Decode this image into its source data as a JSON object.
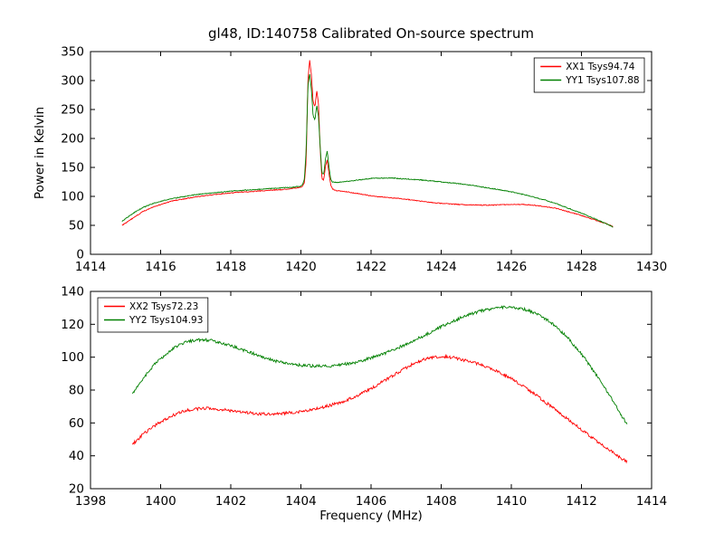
{
  "colors": {
    "xx_line": "#ff0000",
    "yy_line": "#008000",
    "axis": "#000000",
    "background": "#ffffff"
  },
  "chart_data": [
    {
      "type": "line",
      "title": "gl48, ID:140758 Calibrated On-source spectrum",
      "xlabel": "",
      "ylabel": "Power in Kelvin",
      "xlim": [
        1414,
        1430
      ],
      "ylim": [
        0,
        350
      ],
      "xticks": [
        1414,
        1416,
        1418,
        1420,
        1422,
        1424,
        1426,
        1428,
        1430
      ],
      "yticks": [
        0,
        50,
        100,
        150,
        200,
        250,
        300,
        350
      ],
      "grid": false,
      "legend_position": "top-right",
      "series": [
        {
          "name": "XX1 Tsys94.74",
          "color": "#ff0000",
          "points": [
            [
              1414.9,
              50
            ],
            [
              1415.1,
              58
            ],
            [
              1415.3,
              66
            ],
            [
              1415.5,
              74
            ],
            [
              1415.8,
              82
            ],
            [
              1416.1,
              88
            ],
            [
              1416.4,
              93
            ],
            [
              1416.7,
              96
            ],
            [
              1417.0,
              99
            ],
            [
              1417.5,
              103
            ],
            [
              1418.0,
              106
            ],
            [
              1418.5,
              108
            ],
            [
              1419.0,
              110
            ],
            [
              1419.5,
              112
            ],
            [
              1419.8,
              114
            ],
            [
              1420.0,
              116
            ],
            [
              1420.05,
              118
            ],
            [
              1420.1,
              124
            ],
            [
              1420.15,
              160
            ],
            [
              1420.2,
              300
            ],
            [
              1420.25,
              335
            ],
            [
              1420.3,
              310
            ],
            [
              1420.35,
              262
            ],
            [
              1420.4,
              255
            ],
            [
              1420.45,
              283
            ],
            [
              1420.5,
              260
            ],
            [
              1420.55,
              180
            ],
            [
              1420.6,
              130
            ],
            [
              1420.65,
              128
            ],
            [
              1420.7,
              152
            ],
            [
              1420.75,
              163
            ],
            [
              1420.8,
              140
            ],
            [
              1420.85,
              120
            ],
            [
              1420.9,
              113
            ],
            [
              1421.0,
              110
            ],
            [
              1421.3,
              108
            ],
            [
              1421.6,
              105
            ],
            [
              1422.0,
              101
            ],
            [
              1422.5,
              98
            ],
            [
              1423.0,
              95
            ],
            [
              1423.5,
              91
            ],
            [
              1424.0,
              88
            ],
            [
              1424.5,
              86
            ],
            [
              1425.0,
              85
            ],
            [
              1425.5,
              85
            ],
            [
              1426.0,
              86
            ],
            [
              1426.3,
              86
            ],
            [
              1426.6,
              85
            ],
            [
              1427.0,
              82
            ],
            [
              1427.3,
              79
            ],
            [
              1427.6,
              74
            ],
            [
              1428.0,
              67
            ],
            [
              1428.4,
              59
            ],
            [
              1428.7,
              53
            ],
            [
              1428.9,
              48
            ]
          ]
        },
        {
          "name": "YY1 Tsys107.88",
          "color": "#008000",
          "points": [
            [
              1414.9,
              57
            ],
            [
              1415.1,
              66
            ],
            [
              1415.3,
              74
            ],
            [
              1415.5,
              81
            ],
            [
              1415.8,
              88
            ],
            [
              1416.1,
              93
            ],
            [
              1416.4,
              97
            ],
            [
              1416.7,
              100
            ],
            [
              1417.0,
              103
            ],
            [
              1417.5,
              106
            ],
            [
              1418.0,
              109
            ],
            [
              1418.5,
              111
            ],
            [
              1419.0,
              113
            ],
            [
              1419.5,
              115
            ],
            [
              1419.8,
              116
            ],
            [
              1420.0,
              118
            ],
            [
              1420.05,
              121
            ],
            [
              1420.1,
              130
            ],
            [
              1420.15,
              180
            ],
            [
              1420.2,
              290
            ],
            [
              1420.25,
              312
            ],
            [
              1420.3,
              285
            ],
            [
              1420.35,
              238
            ],
            [
              1420.4,
              232
            ],
            [
              1420.45,
              258
            ],
            [
              1420.5,
              238
            ],
            [
              1420.55,
              185
            ],
            [
              1420.6,
              140
            ],
            [
              1420.65,
              138
            ],
            [
              1420.7,
              165
            ],
            [
              1420.75,
              178
            ],
            [
              1420.8,
              152
            ],
            [
              1420.85,
              130
            ],
            [
              1420.9,
              125
            ],
            [
              1421.0,
              124
            ],
            [
              1421.3,
              126
            ],
            [
              1421.6,
              128
            ],
            [
              1422.0,
              131
            ],
            [
              1422.5,
              132
            ],
            [
              1423.0,
              130
            ],
            [
              1423.5,
              128
            ],
            [
              1424.0,
              125
            ],
            [
              1424.5,
              122
            ],
            [
              1425.0,
              118
            ],
            [
              1425.5,
              113
            ],
            [
              1426.0,
              108
            ],
            [
              1426.5,
              101
            ],
            [
              1427.0,
              93
            ],
            [
              1427.3,
              87
            ],
            [
              1427.6,
              80
            ],
            [
              1428.0,
              71
            ],
            [
              1428.4,
              61
            ],
            [
              1428.7,
              53
            ],
            [
              1428.9,
              47
            ]
          ]
        }
      ]
    },
    {
      "type": "line",
      "title": "",
      "xlabel": "Frequency (MHz)",
      "ylabel": "",
      "xlim": [
        1398,
        1414
      ],
      "ylim": [
        20,
        140
      ],
      "xticks": [
        1398,
        1400,
        1402,
        1404,
        1406,
        1408,
        1410,
        1412,
        1414
      ],
      "yticks": [
        20,
        40,
        60,
        80,
        100,
        120,
        140
      ],
      "grid": false,
      "legend_position": "top-left",
      "series": [
        {
          "name": "XX2 Tsys72.23",
          "color": "#ff0000",
          "points": [
            [
              1399.2,
              47
            ],
            [
              1399.5,
              53
            ],
            [
              1399.8,
              58
            ],
            [
              1400.1,
              62
            ],
            [
              1400.4,
              65
            ],
            [
              1400.7,
              67.5
            ],
            [
              1401.0,
              68.5
            ],
            [
              1401.3,
              69
            ],
            [
              1401.6,
              68.5
            ],
            [
              1402.0,
              67.5
            ],
            [
              1402.4,
              66.5
            ],
            [
              1402.8,
              65.5
            ],
            [
              1403.2,
              65.5
            ],
            [
              1403.6,
              66
            ],
            [
              1404.0,
              67
            ],
            [
              1404.4,
              68.5
            ],
            [
              1404.8,
              70.5
            ],
            [
              1405.2,
              73
            ],
            [
              1405.6,
              76.5
            ],
            [
              1406.0,
              81
            ],
            [
              1406.4,
              86
            ],
            [
              1406.8,
              91
            ],
            [
              1407.2,
              96
            ],
            [
              1407.6,
              99.5
            ],
            [
              1408.0,
              100.5
            ],
            [
              1408.4,
              99.5
            ],
            [
              1408.8,
              97.5
            ],
            [
              1409.2,
              95
            ],
            [
              1409.6,
              91.5
            ],
            [
              1410.0,
              87
            ],
            [
              1410.4,
              81.5
            ],
            [
              1410.8,
              75.5
            ],
            [
              1411.2,
              69
            ],
            [
              1411.6,
              62.5
            ],
            [
              1412.0,
              56
            ],
            [
              1412.4,
              49.5
            ],
            [
              1412.8,
              43.5
            ],
            [
              1413.1,
              39
            ],
            [
              1413.3,
              36.5
            ]
          ]
        },
        {
          "name": "YY2 Tsys104.93",
          "color": "#008000",
          "points": [
            [
              1399.2,
              78
            ],
            [
              1399.5,
              87
            ],
            [
              1399.8,
              95
            ],
            [
              1400.1,
              101
            ],
            [
              1400.4,
              106
            ],
            [
              1400.7,
              109
            ],
            [
              1401.0,
              110.5
            ],
            [
              1401.3,
              110.5
            ],
            [
              1401.6,
              109.5
            ],
            [
              1402.0,
              107
            ],
            [
              1402.4,
              104
            ],
            [
              1402.8,
              101
            ],
            [
              1403.2,
              98
            ],
            [
              1403.6,
              96
            ],
            [
              1404.0,
              95
            ],
            [
              1404.4,
              94.5
            ],
            [
              1404.8,
              94.5
            ],
            [
              1405.2,
              95.5
            ],
            [
              1405.6,
              97
            ],
            [
              1406.0,
              99.5
            ],
            [
              1406.4,
              102.5
            ],
            [
              1406.8,
              106
            ],
            [
              1407.2,
              110
            ],
            [
              1407.6,
              114
            ],
            [
              1408.0,
              118.5
            ],
            [
              1408.4,
              122.5
            ],
            [
              1408.8,
              126
            ],
            [
              1409.2,
              128.5
            ],
            [
              1409.6,
              130
            ],
            [
              1410.0,
              130.5
            ],
            [
              1410.4,
              129
            ],
            [
              1410.8,
              125.5
            ],
            [
              1411.2,
              120
            ],
            [
              1411.6,
              112
            ],
            [
              1412.0,
              102
            ],
            [
              1412.4,
              90
            ],
            [
              1412.8,
              77
            ],
            [
              1413.1,
              66
            ],
            [
              1413.3,
              59
            ]
          ]
        }
      ]
    }
  ]
}
